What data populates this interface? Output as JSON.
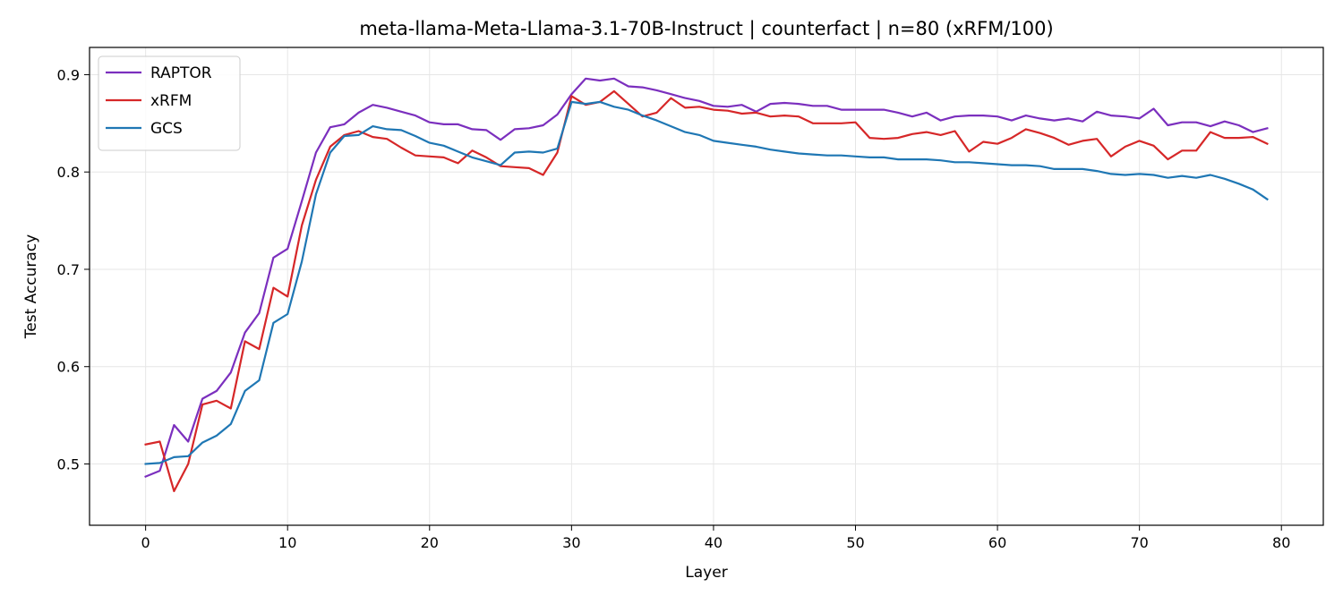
{
  "chart_data": {
    "type": "line",
    "title": "meta-llama-Meta-Llama-3.1-70B-Instruct | counterfact | n=80 (xRFM/100)",
    "xlabel": "Layer",
    "ylabel": "Test Accuracy",
    "xlim": [
      -3.95,
      82.95
    ],
    "ylim": [
      0.437,
      0.928
    ],
    "xticks": [
      0,
      10,
      20,
      30,
      40,
      50,
      60,
      70,
      80
    ],
    "yticks": [
      0.5,
      0.6,
      0.7,
      0.8,
      0.9
    ],
    "xtick_labels": [
      "0",
      "10",
      "20",
      "30",
      "40",
      "50",
      "60",
      "70",
      "80"
    ],
    "ytick_labels": [
      "0.5",
      "0.6",
      "0.7",
      "0.8",
      "0.9"
    ],
    "grid": true,
    "legend_position": "top-left",
    "x": [
      0,
      1,
      2,
      3,
      4,
      5,
      6,
      7,
      8,
      9,
      10,
      11,
      12,
      13,
      14,
      15,
      16,
      17,
      18,
      19,
      20,
      21,
      22,
      23,
      24,
      25,
      26,
      27,
      28,
      29,
      30,
      31,
      32,
      33,
      34,
      35,
      36,
      37,
      38,
      39,
      40,
      41,
      42,
      43,
      44,
      45,
      46,
      47,
      48,
      49,
      50,
      51,
      52,
      53,
      54,
      55,
      56,
      57,
      58,
      59,
      60,
      61,
      62,
      63,
      64,
      65,
      66,
      67,
      68,
      69,
      70,
      71,
      72,
      73,
      74,
      75,
      76,
      77,
      78,
      79
    ],
    "series": [
      {
        "name": "RAPTOR",
        "color": "#7b2fbe",
        "values": [
          0.487,
          0.493,
          0.54,
          0.523,
          0.567,
          0.575,
          0.594,
          0.635,
          0.655,
          0.712,
          0.721,
          0.77,
          0.82,
          0.846,
          0.849,
          0.861,
          0.869,
          0.866,
          0.862,
          0.858,
          0.851,
          0.849,
          0.849,
          0.844,
          0.843,
          0.833,
          0.844,
          0.845,
          0.848,
          0.859,
          0.88,
          0.896,
          0.894,
          0.896,
          0.888,
          0.887,
          0.884,
          0.88,
          0.876,
          0.873,
          0.868,
          0.867,
          0.869,
          0.862,
          0.87,
          0.871,
          0.87,
          0.868,
          0.868,
          0.864,
          0.864,
          0.864,
          0.864,
          0.861,
          0.857,
          0.861,
          0.853,
          0.857,
          0.858,
          0.858,
          0.857,
          0.853,
          0.858,
          0.855,
          0.853,
          0.855,
          0.852,
          0.862,
          0.858,
          0.857,
          0.855,
          0.865,
          0.848,
          0.851,
          0.851,
          0.847,
          0.852,
          0.848,
          0.841,
          0.845
        ]
      },
      {
        "name": "xRFM",
        "color": "#d62728",
        "values": [
          0.52,
          0.523,
          0.472,
          0.5,
          0.561,
          0.565,
          0.557,
          0.626,
          0.618,
          0.681,
          0.672,
          0.745,
          0.792,
          0.826,
          0.838,
          0.842,
          0.836,
          0.834,
          0.825,
          0.817,
          0.816,
          0.815,
          0.809,
          0.822,
          0.815,
          0.806,
          0.805,
          0.804,
          0.797,
          0.82,
          0.878,
          0.869,
          0.872,
          0.883,
          0.87,
          0.857,
          0.861,
          0.876,
          0.866,
          0.867,
          0.864,
          0.863,
          0.86,
          0.861,
          0.857,
          0.858,
          0.857,
          0.85,
          0.85,
          0.85,
          0.851,
          0.835,
          0.834,
          0.835,
          0.839,
          0.841,
          0.838,
          0.842,
          0.821,
          0.831,
          0.829,
          0.835,
          0.844,
          0.84,
          0.835,
          0.828,
          0.832,
          0.834,
          0.816,
          0.826,
          0.832,
          0.827,
          0.813,
          0.822,
          0.822,
          0.841,
          0.835,
          0.835,
          0.836,
          0.829
        ]
      },
      {
        "name": "GCS",
        "color": "#1f77b4",
        "values": [
          0.5,
          0.501,
          0.507,
          0.508,
          0.522,
          0.529,
          0.541,
          0.575,
          0.586,
          0.645,
          0.654,
          0.708,
          0.777,
          0.82,
          0.837,
          0.838,
          0.847,
          0.844,
          0.843,
          0.837,
          0.83,
          0.827,
          0.821,
          0.815,
          0.811,
          0.807,
          0.82,
          0.821,
          0.82,
          0.824,
          0.872,
          0.87,
          0.872,
          0.867,
          0.864,
          0.858,
          0.853,
          0.847,
          0.841,
          0.838,
          0.832,
          0.83,
          0.828,
          0.826,
          0.823,
          0.821,
          0.819,
          0.818,
          0.817,
          0.817,
          0.816,
          0.815,
          0.815,
          0.813,
          0.813,
          0.813,
          0.812,
          0.81,
          0.81,
          0.809,
          0.808,
          0.807,
          0.807,
          0.806,
          0.803,
          0.803,
          0.803,
          0.801,
          0.798,
          0.797,
          0.798,
          0.797,
          0.794,
          0.796,
          0.794,
          0.797,
          0.793,
          0.788,
          0.782,
          0.772
        ]
      }
    ]
  }
}
